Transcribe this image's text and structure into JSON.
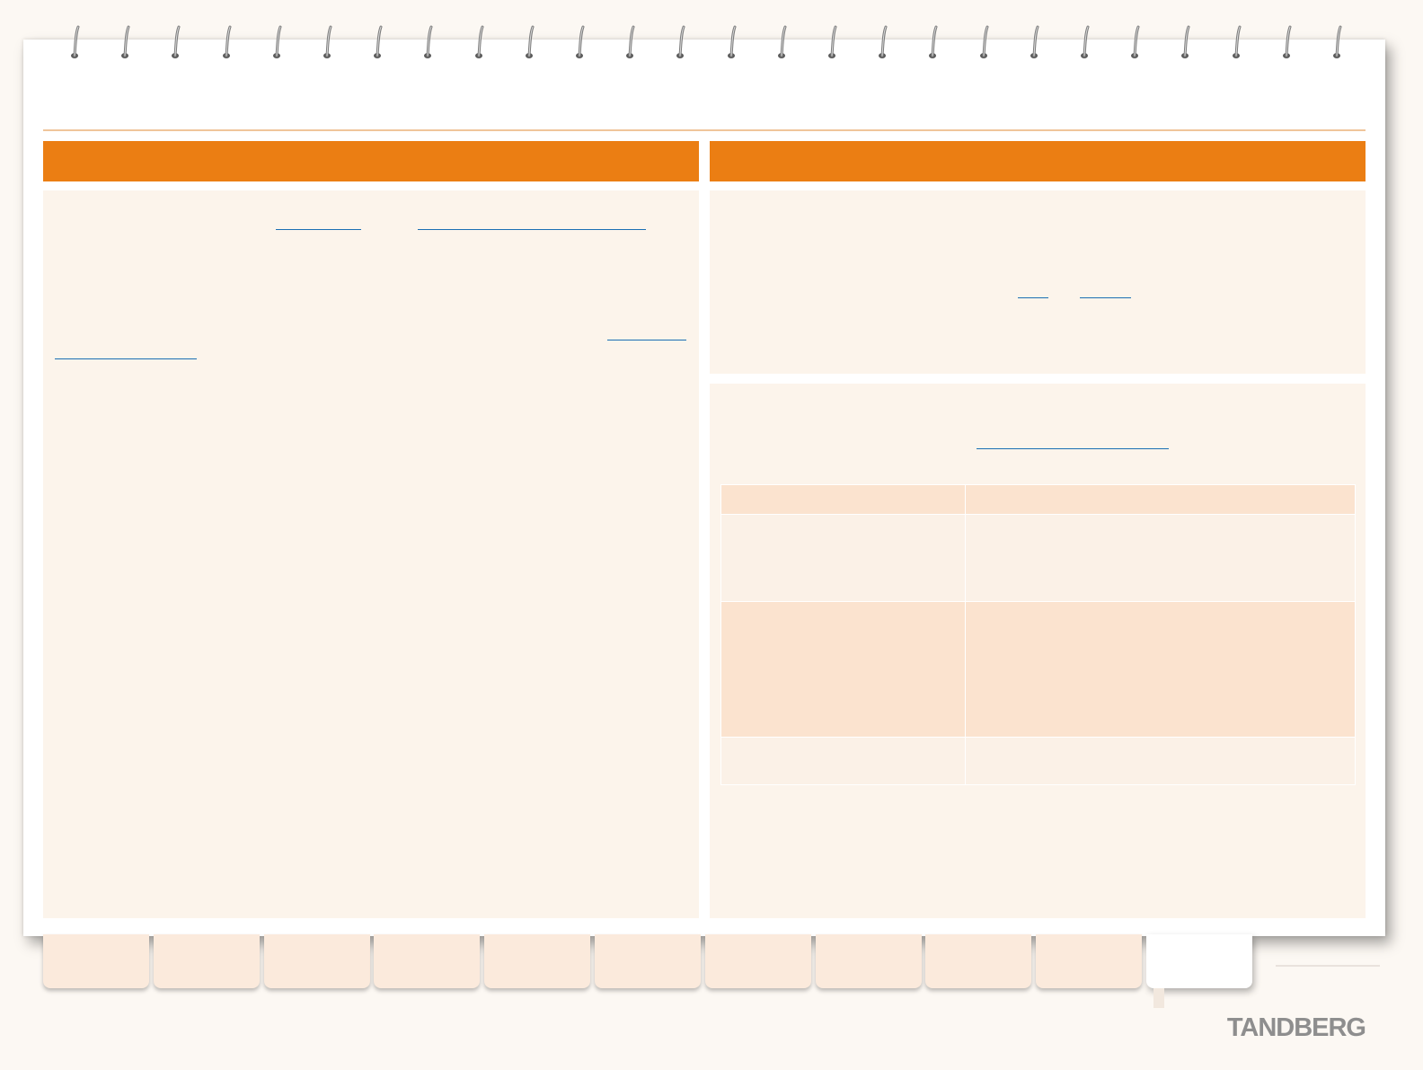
{
  "brand": {
    "logo_text": "TANDBERG",
    "accent_color": "#eb7e13",
    "panel_color": "#fcf4eb",
    "link_color": "#1a6fb3"
  },
  "binder": {
    "ring_count": 26
  },
  "columns": {
    "left": {
      "header": ""
    },
    "right": {
      "header": ""
    }
  },
  "left_panel": {
    "links": [
      {
        "id": "link-1",
        "label": ""
      },
      {
        "id": "link-2",
        "label": ""
      },
      {
        "id": "link-3",
        "label": ""
      },
      {
        "id": "link-4",
        "label": ""
      }
    ]
  },
  "right_top_panel": {
    "links": [
      {
        "id": "link-5",
        "label": ""
      },
      {
        "id": "link-6",
        "label": ""
      }
    ]
  },
  "right_bottom_panel": {
    "links": [
      {
        "id": "link-7",
        "label": ""
      }
    ],
    "table": {
      "headers": [
        "",
        ""
      ],
      "rows": [
        [
          "",
          ""
        ],
        [
          "",
          ""
        ],
        [
          "",
          ""
        ]
      ]
    }
  },
  "tabs": {
    "count": 11,
    "active_index": 10,
    "labels": [
      "",
      "",
      "",
      "",
      "",
      "",
      "",
      "",
      "",
      "",
      ""
    ]
  }
}
